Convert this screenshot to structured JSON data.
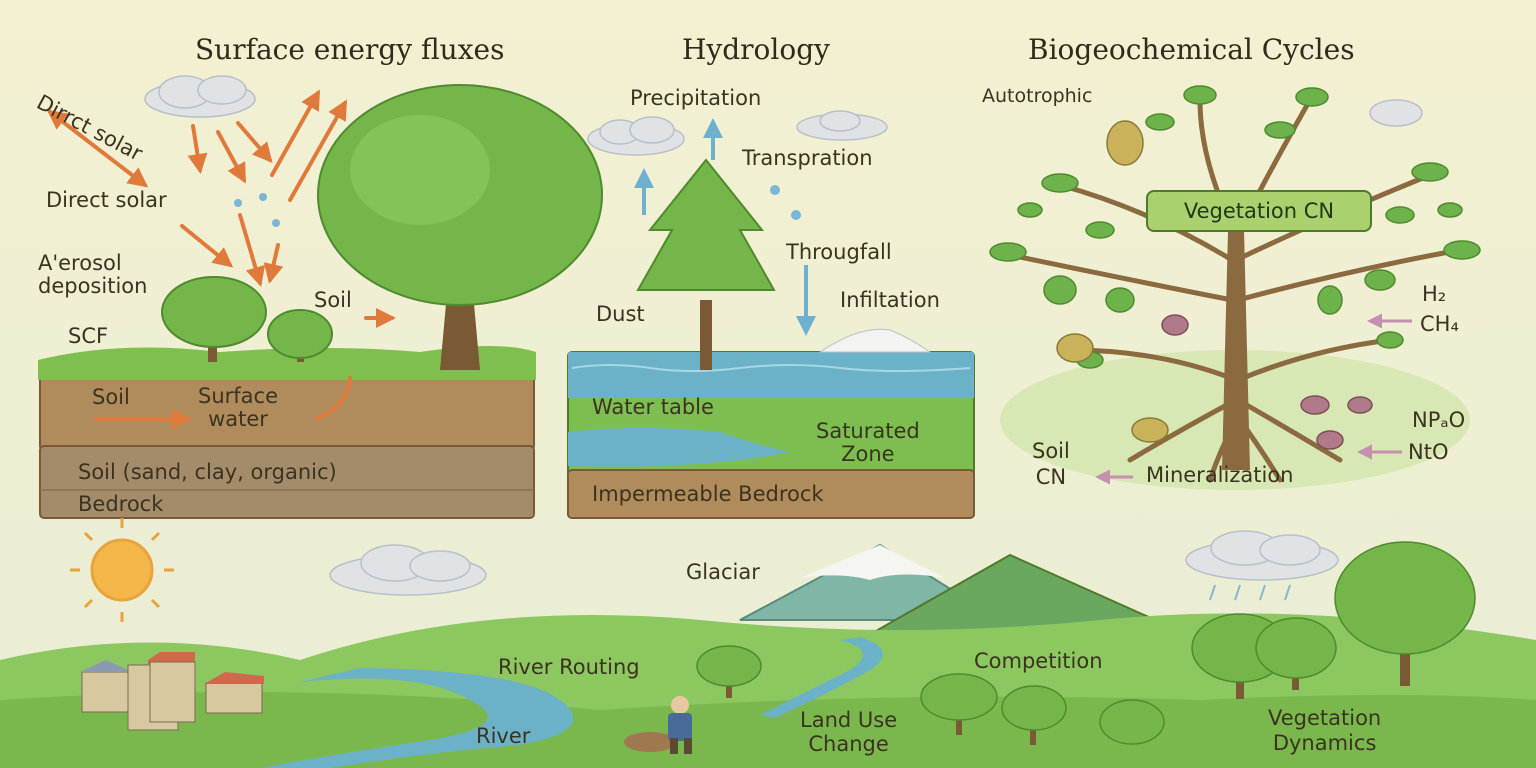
{
  "titles": {
    "energy": "Surface energy fluxes",
    "hydrology": "Hydrology",
    "biogeo": "Biogeochemical Cycles"
  },
  "energy": {
    "direct_solar_top": "Dirrct solar",
    "direct_solar": "Direct solar",
    "aerosol": "A'erosol\ndeposition",
    "scf": "SCF",
    "soil_air": "Soil",
    "soil_layer": "Soil",
    "surface_water": "Surface\nwater",
    "soil_types": "Soil (sand, clay, organic)",
    "bedrock": "Bedrock"
  },
  "hydrology": {
    "precipitation": "Precipitation",
    "transpiration": "Transpration",
    "throughfall": "Througfall",
    "infiltration": "Infiltation",
    "dust": "Dust",
    "water_table": "Water table",
    "saturated_zone": "Saturated\nZone",
    "bedrock": "Impermeable Bedrock"
  },
  "biogeo": {
    "autotrophic": "Autotrophic",
    "vegetation_cn": "Vegetation CN",
    "h2": "H₂",
    "ch4": "CH₄",
    "np2o": "NPₐO",
    "nto": "NtO",
    "soil_cn": "Soil\nCN",
    "mineralization": "Mineralization"
  },
  "landscape": {
    "glacier": "Glaciar",
    "river_routing": "River Routing",
    "river": "River",
    "land_use": "Land Use\nChange",
    "competition": "Competition",
    "veg_dynamics": "Vegetation\nDynamics"
  },
  "colors": {
    "background": "#f3efcf",
    "arrow_solar": "#e07a3a",
    "arrow_water": "#6fb0cf",
    "arrow_chem": "#c58fb0",
    "leaf": "#6db24a",
    "soil": "#9a7a4e",
    "water": "#6bb2c9"
  }
}
